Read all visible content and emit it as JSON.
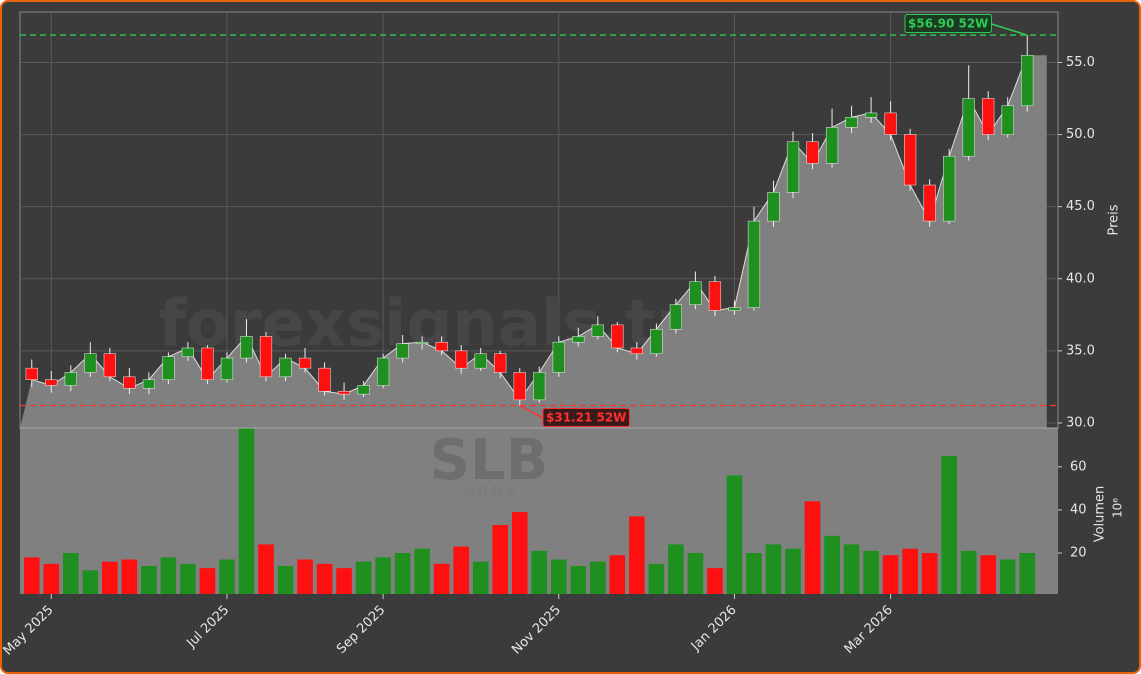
{
  "chart_data": {
    "type": "candlestick",
    "watermark": "forexsignals.trade",
    "symbol": "SLB",
    "subtitle": "SLB.N V",
    "y_label": "Preis",
    "y2_label": "Volumen",
    "y2_scale": "10⁶",
    "categories": [
      null,
      "May 2025",
      null,
      null,
      null,
      null,
      null,
      null,
      null,
      null,
      "Jul 2025",
      null,
      null,
      null,
      null,
      null,
      null,
      null,
      "Sep 2025",
      null,
      null,
      null,
      null,
      null,
      null,
      null,
      null,
      "Nov 2025",
      null,
      null,
      null,
      null,
      null,
      null,
      null,
      null,
      "Jan 2026",
      null,
      null,
      null,
      null,
      null,
      null,
      null,
      "Mar 2026",
      null,
      null,
      null,
      null,
      null,
      null,
      null
    ],
    "open": [
      33.8,
      33.0,
      32.6,
      33.5,
      34.8,
      33.2,
      32.4,
      33.0,
      34.6,
      35.2,
      33.0,
      34.5,
      36.0,
      33.2,
      34.5,
      33.8,
      32.2,
      32.0,
      32.6,
      34.5,
      35.5,
      35.6,
      35.0,
      33.8,
      34.8,
      33.5,
      31.6,
      33.5,
      35.6,
      36.0,
      36.8,
      35.2,
      34.8,
      36.5,
      38.2,
      39.8,
      37.8,
      38.0,
      44.0,
      46.0,
      49.5,
      48.0,
      50.5,
      51.2,
      51.5,
      50.0,
      46.5,
      44.0,
      48.5,
      52.5,
      50.0,
      52.0
    ],
    "high": [
      34.4,
      33.6,
      34.0,
      35.6,
      35.2,
      33.8,
      33.5,
      34.9,
      35.6,
      35.4,
      34.9,
      37.2,
      36.3,
      34.8,
      35.2,
      34.2,
      32.8,
      32.9,
      34.8,
      36.1,
      36.0,
      36.0,
      35.4,
      35.2,
      35.0,
      33.8,
      33.9,
      36.0,
      36.6,
      37.4,
      37.0,
      35.6,
      36.9,
      38.6,
      40.5,
      40.2,
      38.5,
      45.0,
      46.8,
      50.2,
      50.1,
      51.8,
      52.0,
      52.6,
      52.3,
      50.4,
      46.9,
      49.0,
      54.8,
      53.0,
      52.6,
      56.9
    ],
    "low": [
      32.5,
      32.1,
      32.2,
      33.2,
      32.9,
      32.0,
      32.0,
      32.7,
      34.3,
      32.7,
      32.8,
      34.2,
      32.9,
      32.9,
      33.5,
      31.9,
      31.6,
      31.8,
      32.4,
      34.2,
      35.1,
      34.7,
      33.4,
      33.6,
      33.1,
      31.21,
      31.4,
      33.2,
      35.3,
      35.8,
      34.9,
      34.4,
      34.6,
      36.2,
      37.9,
      37.4,
      37.5,
      37.8,
      43.6,
      45.6,
      47.6,
      47.7,
      50.1,
      50.8,
      49.6,
      46.1,
      43.6,
      43.8,
      48.2,
      49.6,
      49.8,
      51.6
    ],
    "close": [
      33.0,
      32.6,
      33.5,
      34.8,
      33.2,
      32.4,
      33.0,
      34.6,
      35.2,
      33.0,
      34.5,
      36.0,
      33.2,
      34.5,
      33.8,
      32.2,
      32.0,
      32.6,
      34.5,
      35.5,
      35.6,
      35.0,
      33.8,
      34.8,
      33.5,
      31.6,
      33.5,
      35.6,
      36.0,
      36.8,
      35.2,
      34.8,
      36.5,
      38.2,
      39.8,
      37.8,
      38.0,
      44.0,
      46.0,
      49.5,
      48.0,
      50.5,
      51.2,
      51.5,
      50.0,
      46.5,
      44.0,
      48.5,
      52.5,
      50.0,
      52.0,
      55.5
    ],
    "volume": [
      18,
      15,
      20,
      12,
      16,
      17,
      14,
      18,
      15,
      13,
      17,
      78,
      24,
      14,
      17,
      15,
      13,
      16,
      18,
      20,
      22,
      15,
      23,
      16,
      33,
      39,
      21,
      17,
      14,
      16,
      19,
      37,
      15,
      24,
      20,
      13,
      56,
      20,
      24,
      22,
      44,
      28,
      24,
      21,
      19,
      22,
      20,
      65,
      21,
      19,
      17,
      20
    ],
    "up_color": "#1f8f1f",
    "down_color": "#ff1010",
    "area_color": "#808080",
    "ylim": [
      29.65,
      58.5
    ],
    "yticks": [
      {
        "value": 30,
        "label": "30.0"
      },
      {
        "value": 35,
        "label": "35.0"
      },
      {
        "value": 40,
        "label": "40.0"
      },
      {
        "value": 45,
        "label": "45.0"
      },
      {
        "value": 50,
        "label": "50.0"
      },
      {
        "value": 55,
        "label": "55.0"
      }
    ],
    "y2lim": [
      1,
      78
    ],
    "y2ticks": [
      20,
      40,
      60
    ],
    "high_52w": {
      "value": 56.9,
      "label": "$56.90 52W",
      "color": "#2ecc55"
    },
    "low_52w": {
      "value": 31.21,
      "label": "$31.21 52W",
      "color": "#ff3030"
    },
    "grid": true
  }
}
